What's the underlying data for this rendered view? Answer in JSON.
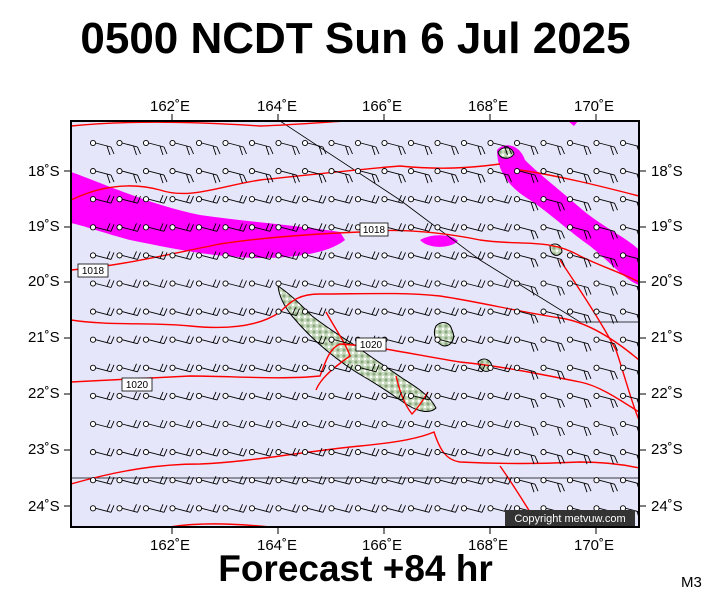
{
  "title": "0500 NCDT Sun 6 Jul 2025",
  "forecast_label": "Forecast +84 hr",
  "model_code": "M3",
  "copyright": "Copyright metvuw.com",
  "lon_labels": [
    "162˚E",
    "164˚E",
    "166˚E",
    "168˚E",
    "170˚E"
  ],
  "lat_labels": [
    "18˚S",
    "19˚S",
    "20˚S",
    "21˚S",
    "22˚S",
    "23˚S",
    "24˚S"
  ],
  "isobar_labels": [
    "1018",
    "1018",
    "1020",
    "1020"
  ],
  "colors": {
    "map_background": "#e6e6fa",
    "precip": "#ff00ff",
    "isobar": "#ff0000",
    "land": "#b9d3b0",
    "frame": "#000000"
  }
}
